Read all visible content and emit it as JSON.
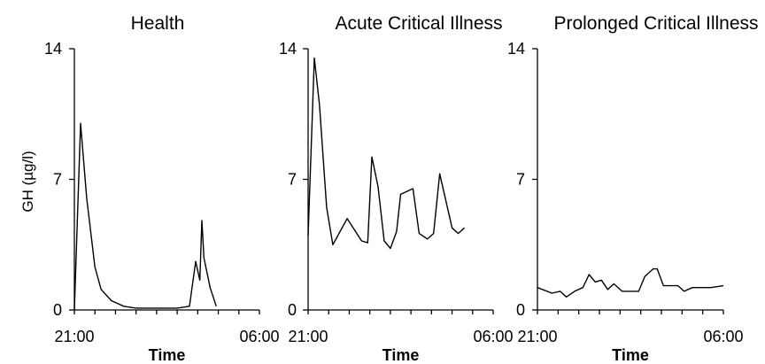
{
  "figure": {
    "ylabel": "GH (µg/l)"
  },
  "chart_data": [
    {
      "type": "line",
      "title": "Health",
      "xlabel": "Time",
      "x_ticks": [
        "21:00",
        "06:00"
      ],
      "y_ticks": [
        0,
        7,
        14
      ],
      "ylim": [
        0,
        14
      ],
      "xlim": [
        0,
        9
      ],
      "grid": false,
      "series": [
        {
          "x": [
            0,
            0.3,
            0.6,
            1,
            1.3,
            1.8,
            2.4,
            3.0,
            4.0,
            5.0,
            5.6,
            5.9,
            6.1,
            6.2,
            6.3,
            6.6,
            6.9
          ],
          "values": [
            0,
            10,
            6,
            2.3,
            1.1,
            0.5,
            0.2,
            0.1,
            0.1,
            0.1,
            0.2,
            2.6,
            1.6,
            4.8,
            2.8,
            1.2,
            0.2
          ]
        }
      ]
    },
    {
      "type": "line",
      "title": "Acute Critical Illness",
      "xlabel": "Time",
      "x_ticks": [
        "21:00",
        "06:00"
      ],
      "y_ticks": [
        0,
        7,
        14
      ],
      "ylim": [
        0,
        14
      ],
      "xlim": [
        0,
        9
      ],
      "grid": false,
      "series": [
        {
          "x": [
            0,
            0.3,
            0.55,
            0.9,
            1.2,
            1.9,
            2.6,
            2.9,
            3.1,
            3.4,
            3.7,
            4.0,
            4.3,
            4.5,
            5.1,
            5.4,
            5.8,
            6.1,
            6.4,
            7.0,
            7.3,
            7.6
          ],
          "values": [
            4,
            13.5,
            11,
            5.5,
            3.5,
            4.9,
            3.7,
            3.6,
            8.2,
            6.6,
            3.7,
            3.3,
            4.2,
            6.2,
            6.5,
            4.1,
            3.8,
            4.1,
            7.3,
            4.4,
            4.1,
            4.4
          ]
        }
      ]
    },
    {
      "type": "line",
      "title": "Prolonged Critical Illness",
      "xlabel": "Time",
      "x_ticks": [
        "21:00",
        "06:00"
      ],
      "y_ticks": [
        0,
        7,
        14
      ],
      "ylim": [
        0,
        14
      ],
      "xlim": [
        0,
        9
      ],
      "grid": false,
      "series": [
        {
          "x": [
            0,
            0.7,
            1.1,
            1.4,
            1.8,
            2.2,
            2.5,
            2.8,
            3.1,
            3.4,
            3.7,
            4.1,
            4.5,
            4.9,
            5.2,
            5.6,
            5.8,
            6.1,
            6.4,
            6.8,
            7.1,
            7.5,
            8.0,
            8.4,
            9.0
          ],
          "values": [
            1.2,
            0.9,
            1.0,
            0.7,
            1.0,
            1.2,
            1.9,
            1.5,
            1.6,
            1.1,
            1.4,
            1.0,
            1.0,
            1.0,
            1.8,
            2.2,
            2.2,
            1.3,
            1.3,
            1.3,
            1.0,
            1.2,
            1.2,
            1.2,
            1.3
          ]
        }
      ]
    }
  ]
}
